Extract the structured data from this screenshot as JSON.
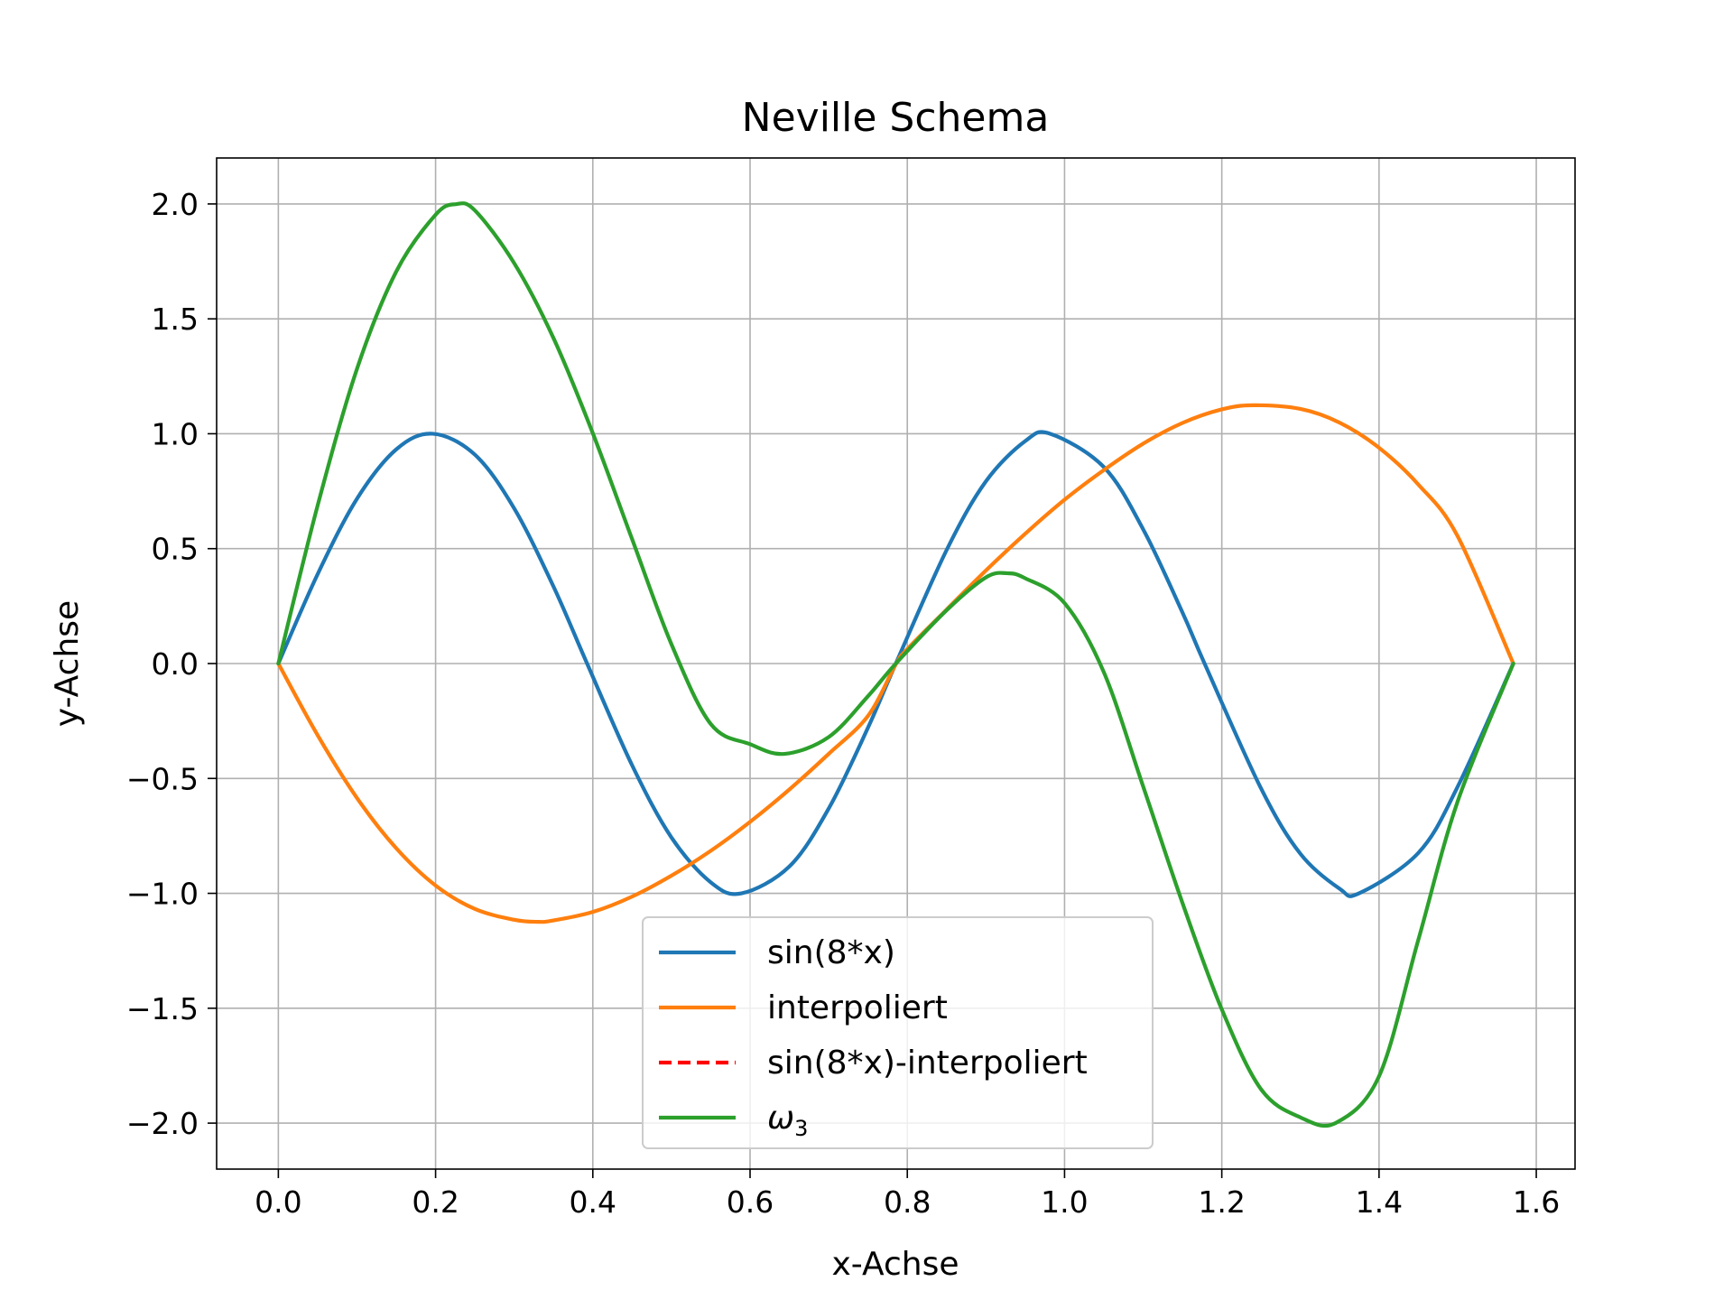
{
  "chart_data": {
    "type": "line",
    "title": "Neville Schema",
    "xlabel": "x-Achse",
    "ylabel": "y-Achse",
    "xlim": [
      -0.0785,
      1.6493
    ],
    "ylim": [
      -2.2,
      2.2
    ],
    "xticks": [
      0.0,
      0.2,
      0.4,
      0.6,
      0.8,
      1.0,
      1.2,
      1.4,
      1.6
    ],
    "xtick_labels": [
      "0.0",
      "0.2",
      "0.4",
      "0.6",
      "0.8",
      "1.0",
      "1.2",
      "1.4",
      "1.6"
    ],
    "yticks": [
      2.0,
      1.5,
      1.0,
      0.5,
      0.0,
      -0.5,
      -1.0,
      -1.5,
      -2.0
    ],
    "ytick_labels": [
      "2.0",
      "1.5",
      "1.0",
      "0.5",
      "0.0",
      "−0.5",
      "−1.0",
      "−1.5",
      "−2.0"
    ],
    "grid": true,
    "legend_position": "lower center",
    "series": [
      {
        "name": "sin(8*x)",
        "color": "#1f77b4",
        "style": "solid",
        "x": [
          0.0,
          0.05,
          0.1,
          0.15,
          0.19635,
          0.25,
          0.3,
          0.35,
          0.3927,
          0.45,
          0.5,
          0.55,
          0.58905,
          0.65,
          0.7,
          0.75,
          0.7854,
          0.85,
          0.9,
          0.95,
          0.98175,
          1.05,
          1.1,
          1.15,
          1.1781,
          1.25,
          1.3,
          1.35,
          1.37445,
          1.45,
          1.5,
          1.5708
        ],
        "y": [
          0.0,
          0.389,
          0.717,
          0.932,
          1.0,
          0.909,
          0.675,
          0.335,
          0.0,
          -0.443,
          -0.757,
          -0.952,
          -1.0,
          -0.883,
          -0.631,
          -0.279,
          0.0,
          0.494,
          0.793,
          0.968,
          1.0,
          0.855,
          0.584,
          0.222,
          0.0,
          -0.544,
          -0.828,
          -0.98,
          -1.0,
          -0.824,
          -0.536,
          0.0
        ]
      },
      {
        "name": "interpoliert",
        "color": "#ff7f0e",
        "style": "solid",
        "x": [
          0.0,
          0.05,
          0.1,
          0.15,
          0.2,
          0.25,
          0.3,
          0.33,
          0.35,
          0.4,
          0.45,
          0.5,
          0.55,
          0.6,
          0.65,
          0.7,
          0.75,
          0.7854,
          0.8,
          0.85,
          0.9,
          0.95,
          1.0,
          1.05,
          1.1,
          1.15,
          1.2,
          1.24,
          1.3,
          1.35,
          1.4,
          1.45,
          1.5,
          1.5708
        ],
        "y": [
          0.0,
          -0.312,
          -0.585,
          -0.804,
          -0.966,
          -1.068,
          -1.115,
          -1.124,
          -1.118,
          -1.081,
          -1.014,
          -0.923,
          -0.815,
          -0.689,
          -0.548,
          -0.393,
          -0.228,
          -0.003,
          0.063,
          0.235,
          0.405,
          0.565,
          0.713,
          0.842,
          0.957,
          1.047,
          1.106,
          1.124,
          1.108,
          1.048,
          0.939,
          0.779,
          0.554,
          0.0
        ]
      },
      {
        "name": "sin(8*x)-interpoliert",
        "color": "#ff0000",
        "style": "dashed",
        "x": [],
        "y": []
      },
      {
        "name": "ω",
        "name_sub": "3",
        "color": "#2ca02c",
        "style": "solid",
        "x": [
          0.0,
          0.05,
          0.1,
          0.15,
          0.2,
          0.226,
          0.25,
          0.3,
          0.35,
          0.4,
          0.45,
          0.5,
          0.55,
          0.6,
          0.644,
          0.7,
          0.75,
          0.7854,
          0.85,
          0.9,
          0.927,
          0.95,
          1.0,
          1.05,
          1.1,
          1.15,
          1.2,
          1.25,
          1.3,
          1.345,
          1.4,
          1.45,
          1.5,
          1.5708
        ],
        "y": [
          0.0,
          0.688,
          1.282,
          1.706,
          1.953,
          1.999,
          1.972,
          1.742,
          1.416,
          1.002,
          0.541,
          0.084,
          -0.263,
          -0.351,
          -0.393,
          -0.32,
          -0.142,
          0.0,
          0.232,
          0.375,
          0.393,
          0.371,
          0.263,
          -0.038,
          -0.535,
          -1.042,
          -1.505,
          -1.853,
          -1.975,
          -1.999,
          -1.796,
          -1.202,
          -0.6,
          0.0
        ]
      }
    ]
  }
}
